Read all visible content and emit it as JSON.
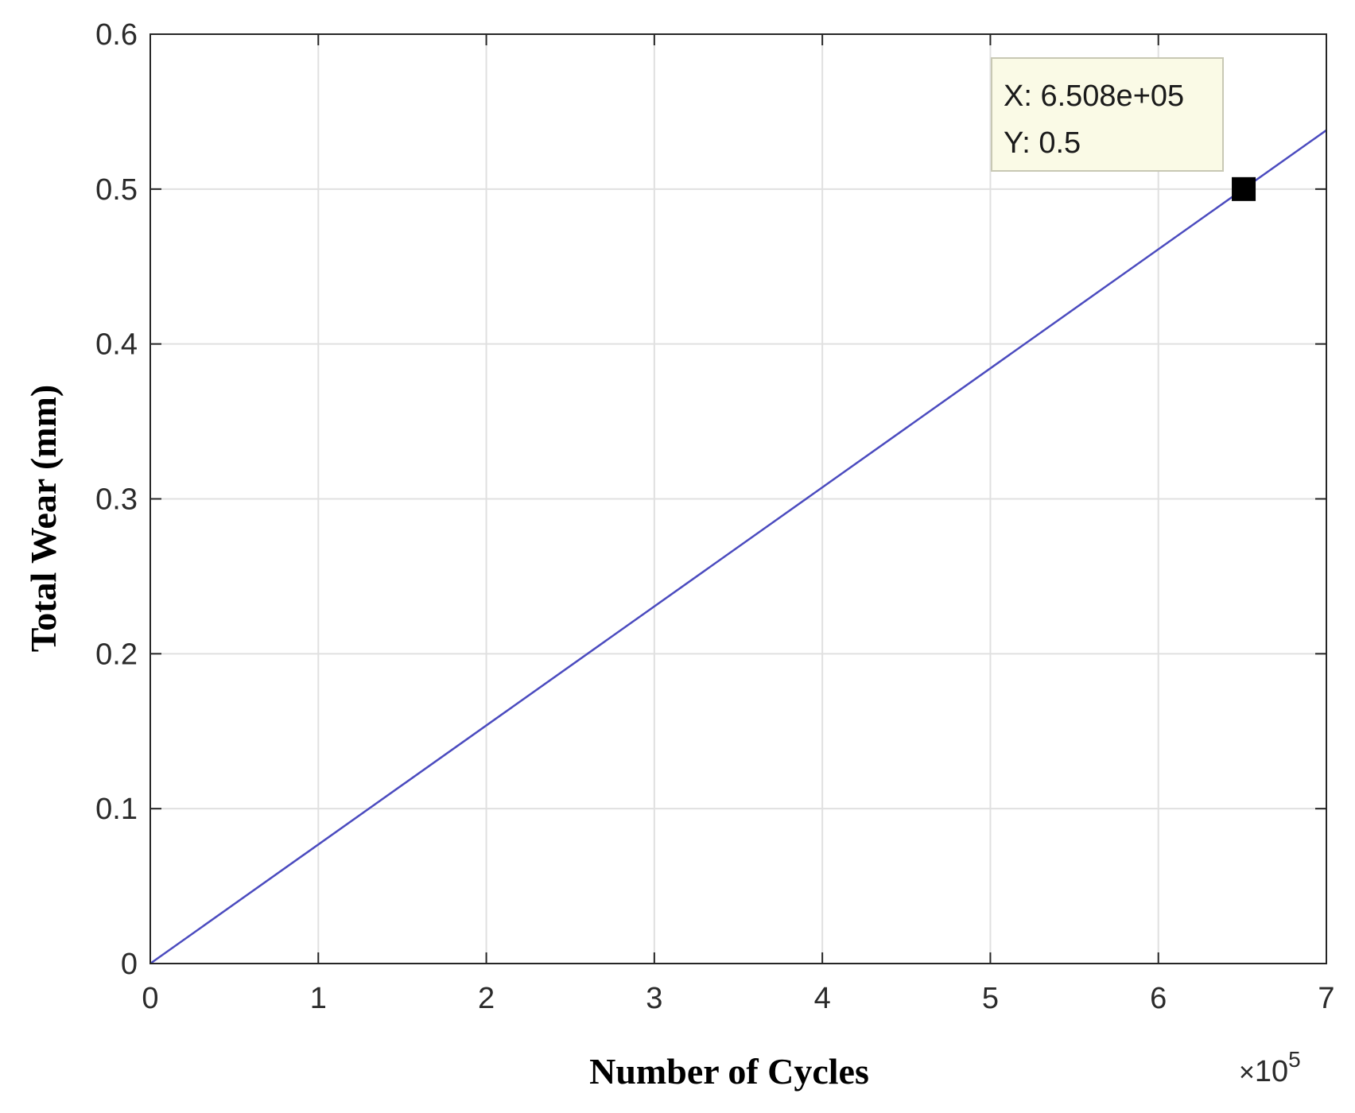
{
  "chart_data": {
    "type": "line",
    "title": "",
    "xlabel": "Number of Cycles",
    "ylabel": "Total Wear (mm)",
    "x_exponent_multiplier": "×",
    "x_exponent_base": "10",
    "x_exponent_power": "5",
    "xlim": [
      0,
      7
    ],
    "ylim": [
      0,
      0.6
    ],
    "x_ticks": [
      "0",
      "1",
      "2",
      "3",
      "4",
      "5",
      "6",
      "7"
    ],
    "y_ticks": [
      "0",
      "0.1",
      "0.2",
      "0.3",
      "0.4",
      "0.5",
      "0.6"
    ],
    "grid": true,
    "series": [
      {
        "color": "#4b4bbf",
        "x": [
          0,
          7
        ],
        "y": [
          0,
          0.538
        ]
      }
    ],
    "datatip": {
      "x_value": 6.508,
      "y_value": 0.5,
      "x_text": "X: 6.508e+05",
      "y_text": "Y: 0.5",
      "box_color": "#fafae6",
      "marker_color": "#000000"
    },
    "colors": {
      "grid": "#e0e0e0",
      "axes": "#262626"
    }
  }
}
